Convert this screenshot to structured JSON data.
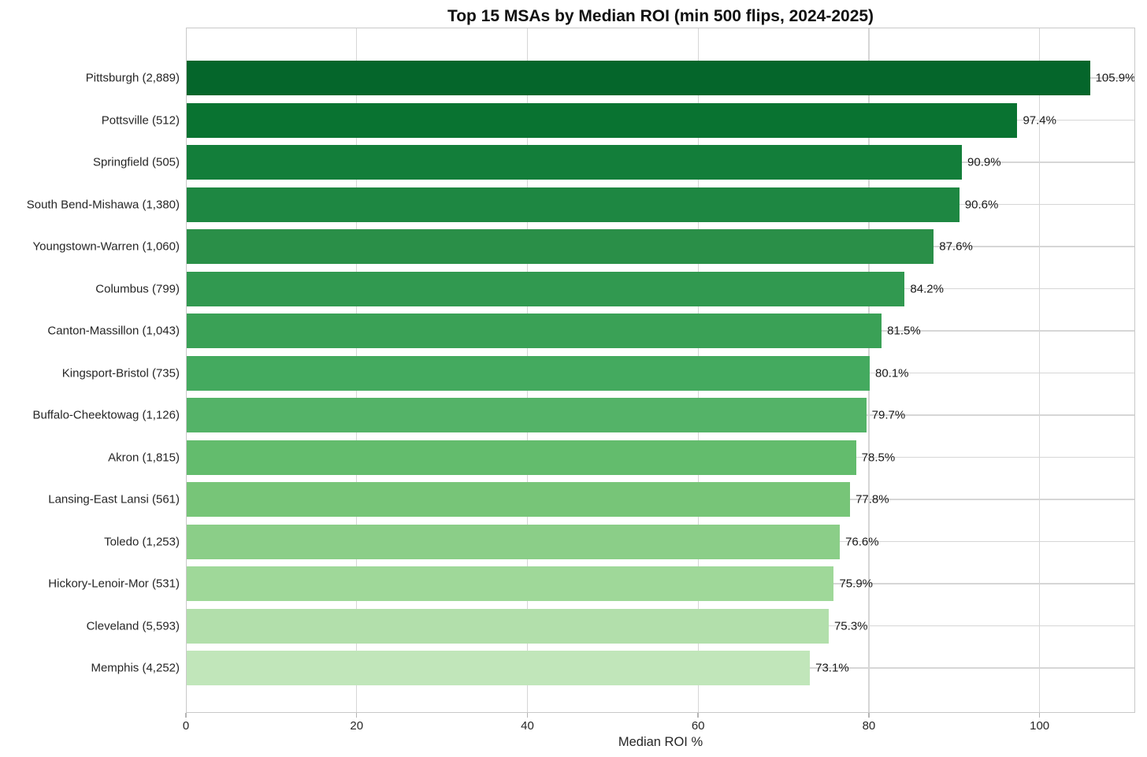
{
  "chart_data": {
    "type": "bar",
    "orientation": "horizontal",
    "title": "Top 15 MSAs by Median ROI (min 500 flips, 2024-2025)",
    "xlabel": "Median ROI %",
    "xlim": [
      0,
      111.2
    ],
    "xticks": [
      0,
      20,
      40,
      60,
      80,
      100
    ],
    "grid": true,
    "legend": false,
    "categories": [
      "Pittsburgh (2,889)",
      "Pottsville (512)",
      "Springfield (505)",
      "South Bend-Mishawa (1,380)",
      "Youngstown-Warren (1,060)",
      "Columbus (799)",
      "Canton-Massillon (1,043)",
      "Kingsport-Bristol (735)",
      "Buffalo-Cheektowag (1,126)",
      "Akron (1,815)",
      "Lansing-East Lansi (561)",
      "Toledo (1,253)",
      "Hickory-Lenoir-Mor (531)",
      "Cleveland (5,593)",
      "Memphis (4,252)"
    ],
    "values": [
      105.9,
      97.4,
      90.9,
      90.6,
      87.6,
      84.2,
      81.5,
      80.1,
      79.7,
      78.5,
      77.8,
      76.6,
      75.9,
      75.3,
      73.1
    ],
    "value_labels": [
      "105.9%",
      "97.4%",
      "90.9%",
      "90.6%",
      "87.6%",
      "84.2%",
      "81.5%",
      "80.1%",
      "79.7%",
      "78.5%",
      "77.8%",
      "76.6%",
      "75.9%",
      "75.3%",
      "73.1%"
    ],
    "bar_colors": [
      "#05662b",
      "#097331",
      "#137e3a",
      "#1e8742",
      "#2a8f48",
      "#319950",
      "#3aa156",
      "#44aa5f",
      "#54b368",
      "#63bc6d",
      "#77c578",
      "#8bce88",
      "#9fd899",
      "#b2dfab",
      "#c1e6ba"
    ],
    "colors": {
      "background": "#ffffff",
      "text": "#262626",
      "title": "#111111",
      "grid": "#d6d6d6",
      "spine": "#c9c9c9"
    }
  }
}
